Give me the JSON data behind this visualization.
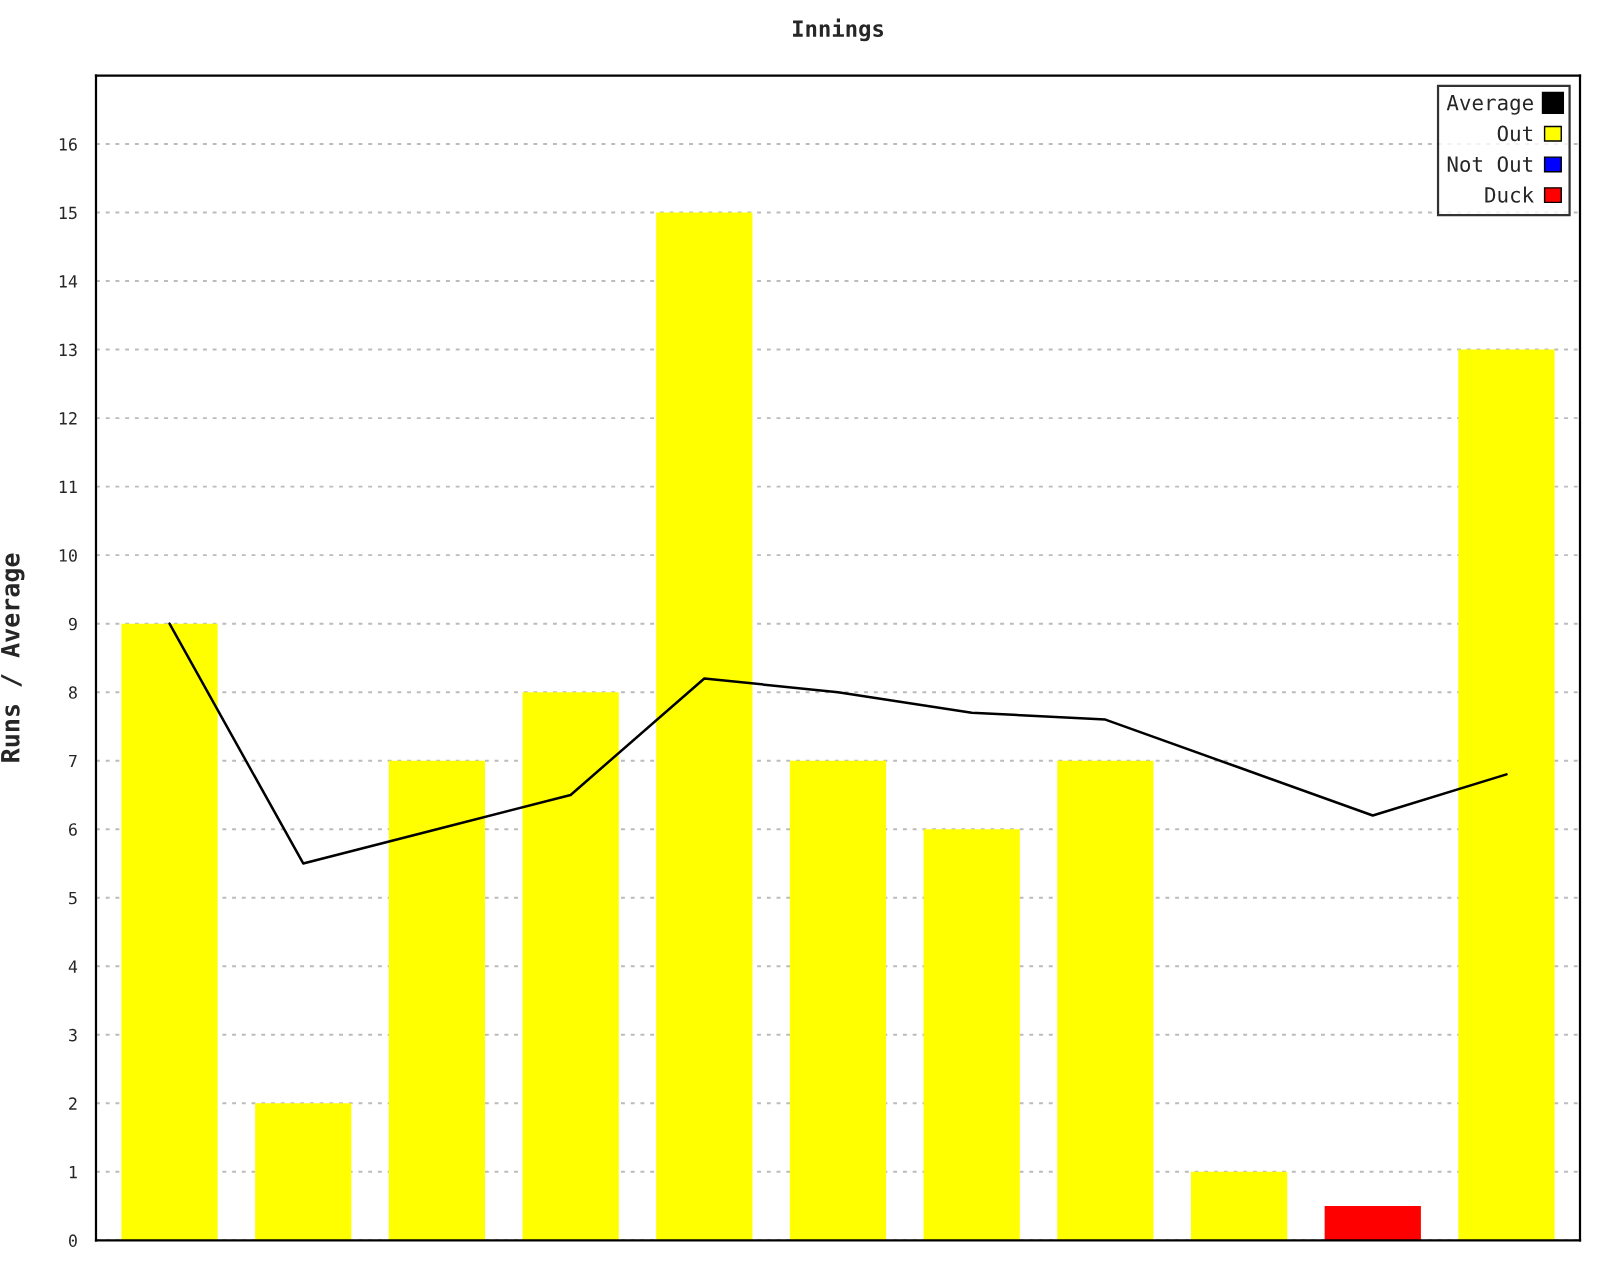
{
  "chart_data": {
    "type": "bar",
    "title": "Innings",
    "ylabel": "Runs / Average",
    "categories": [
      null,
      null,
      null,
      null,
      null,
      null,
      null,
      null,
      null,
      null,
      null
    ],
    "stacked": true,
    "series": [
      {
        "name": "Average",
        "type": "line",
        "color": "#000000",
        "values": [
          9,
          5.5,
          6,
          6.5,
          8.2,
          8,
          7.7,
          7.6,
          6.9,
          6.2,
          6.8
        ]
      },
      {
        "name": "Out",
        "color": "#ffff00",
        "values": [
          9,
          2,
          7,
          8,
          15,
          7,
          6,
          7,
          1,
          null,
          13
        ]
      },
      {
        "name": "Not Out",
        "color": "#0000ff",
        "values": [
          null,
          null,
          null,
          null,
          null,
          null,
          null,
          null,
          null,
          null,
          null
        ]
      },
      {
        "name": "Duck",
        "color": "#ff0000",
        "values": [
          null,
          null,
          null,
          null,
          null,
          null,
          null,
          null,
          null,
          0.5,
          null
        ]
      }
    ],
    "ylim": [
      0,
      17
    ],
    "yticks": [
      0,
      1,
      2,
      3,
      4,
      5,
      6,
      7,
      8,
      9,
      10,
      11,
      12,
      13,
      14,
      15,
      16
    ],
    "tick_labels": "y",
    "grid": "y",
    "legend": "top right",
    "marker": "none",
    "line_style": "solid"
  }
}
